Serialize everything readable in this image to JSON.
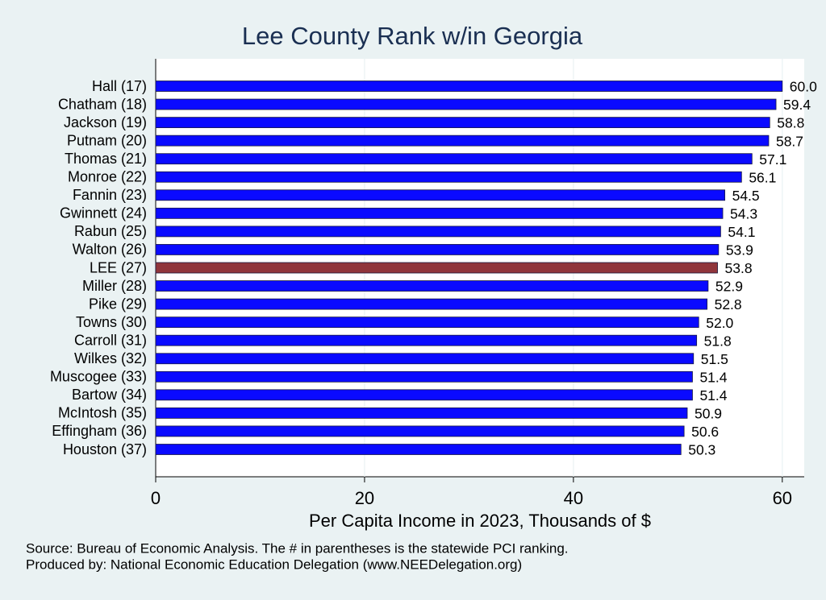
{
  "chart_data": {
    "type": "bar",
    "orientation": "horizontal",
    "title": "Lee County Rank w/in Georgia",
    "x_label": "Per Capita Income in 2023, Thousands of $",
    "categories": [
      "Hall (17)",
      "Chatham (18)",
      "Jackson (19)",
      "Putnam (20)",
      "Thomas (21)",
      "Monroe (22)",
      "Fannin (23)",
      "Gwinnett (24)",
      "Rabun (25)",
      "Walton (26)",
      "LEE (27)",
      "Miller (28)",
      "Pike (29)",
      "Towns (30)",
      "Carroll (31)",
      "Wilkes (32)",
      "Muscogee (33)",
      "Bartow (34)",
      "McIntosh (35)",
      "Effingham (36)",
      "Houston (37)"
    ],
    "values": [
      60.0,
      59.4,
      58.8,
      58.7,
      57.1,
      56.1,
      54.5,
      54.3,
      54.1,
      53.9,
      53.8,
      52.9,
      52.8,
      52.0,
      51.8,
      51.5,
      51.4,
      51.4,
      50.9,
      50.6,
      50.3
    ],
    "value_labels": [
      "60.0",
      "59.4",
      "58.8",
      "58.7",
      "57.1",
      "56.1",
      "54.5",
      "54.3",
      "54.1",
      "53.9",
      "53.8",
      "52.9",
      "52.8",
      "52.0",
      "51.8",
      "51.5",
      "51.4",
      "51.4",
      "50.9",
      "50.6",
      "50.3"
    ],
    "colors": [
      "#0a0aff",
      "#0a0aff",
      "#0a0aff",
      "#0a0aff",
      "#0a0aff",
      "#0a0aff",
      "#0a0aff",
      "#0a0aff",
      "#0a0aff",
      "#0a0aff",
      "#90353b",
      "#0a0aff",
      "#0a0aff",
      "#0a0aff",
      "#0a0aff",
      "#0a0aff",
      "#0a0aff",
      "#0a0aff",
      "#0a0aff",
      "#0a0aff",
      "#0a0aff"
    ],
    "xlim": [
      0,
      62.1
    ],
    "xticks": [
      0,
      20,
      40,
      60
    ],
    "grid": true,
    "notes": [
      "Source: Bureau of Economic Analysis. The # in parentheses is the statewide PCI ranking.",
      "Produced by: National Economic Education Delegation (www.NEEDelegation.org)"
    ]
  }
}
